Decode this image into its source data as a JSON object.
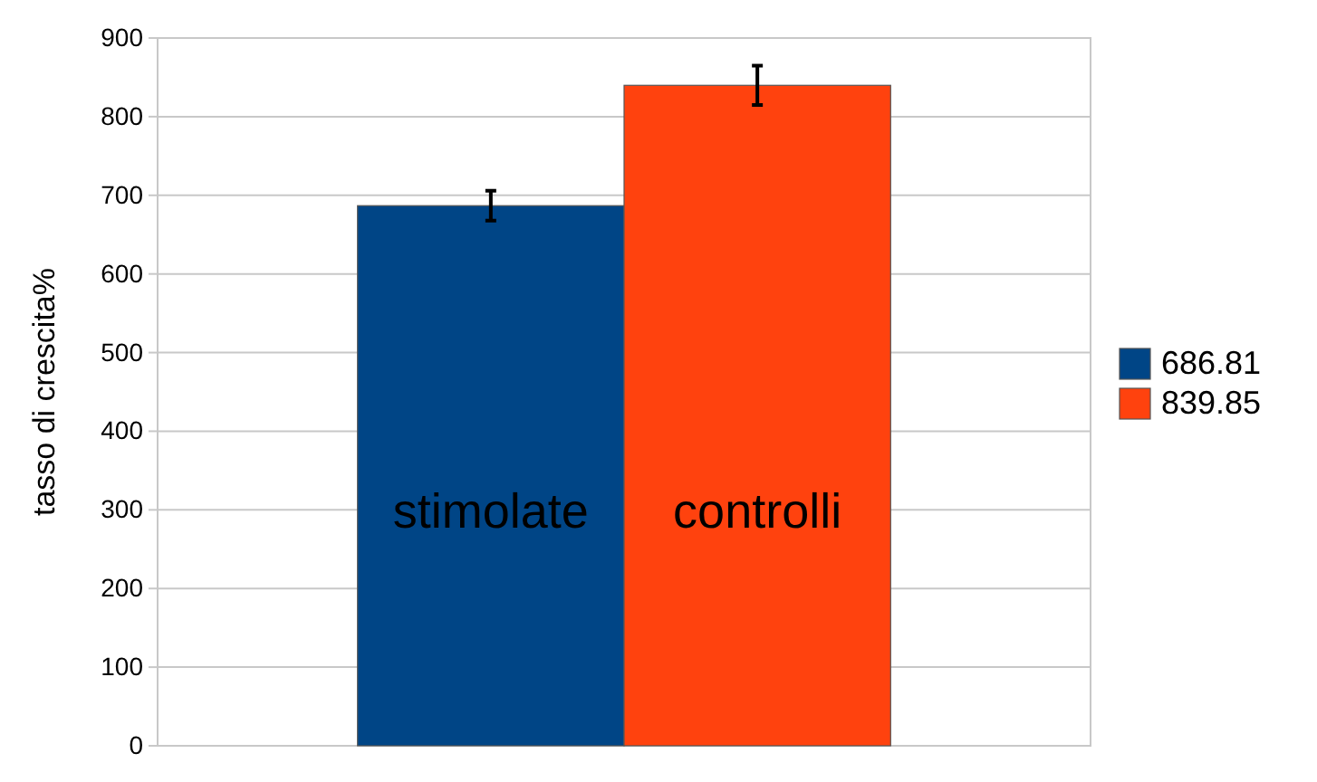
{
  "chart_data": {
    "type": "bar",
    "ylabel": "tasso di crescita%",
    "categories": [
      null
    ],
    "series": [
      {
        "name": "686.81",
        "color": "#004586",
        "values": [
          686.81
        ],
        "errors": [
          19
        ]
      },
      {
        "name": "839.85",
        "color": "#ff420e",
        "values": [
          839.85
        ],
        "errors": [
          25
        ]
      }
    ],
    "annotations": [
      "stimolate",
      "controlli"
    ],
    "ylim": [
      0,
      900
    ],
    "yticks": [
      0,
      100,
      200,
      300,
      400,
      500,
      600,
      700,
      800,
      900
    ],
    "grid": "y",
    "legend": "right"
  }
}
